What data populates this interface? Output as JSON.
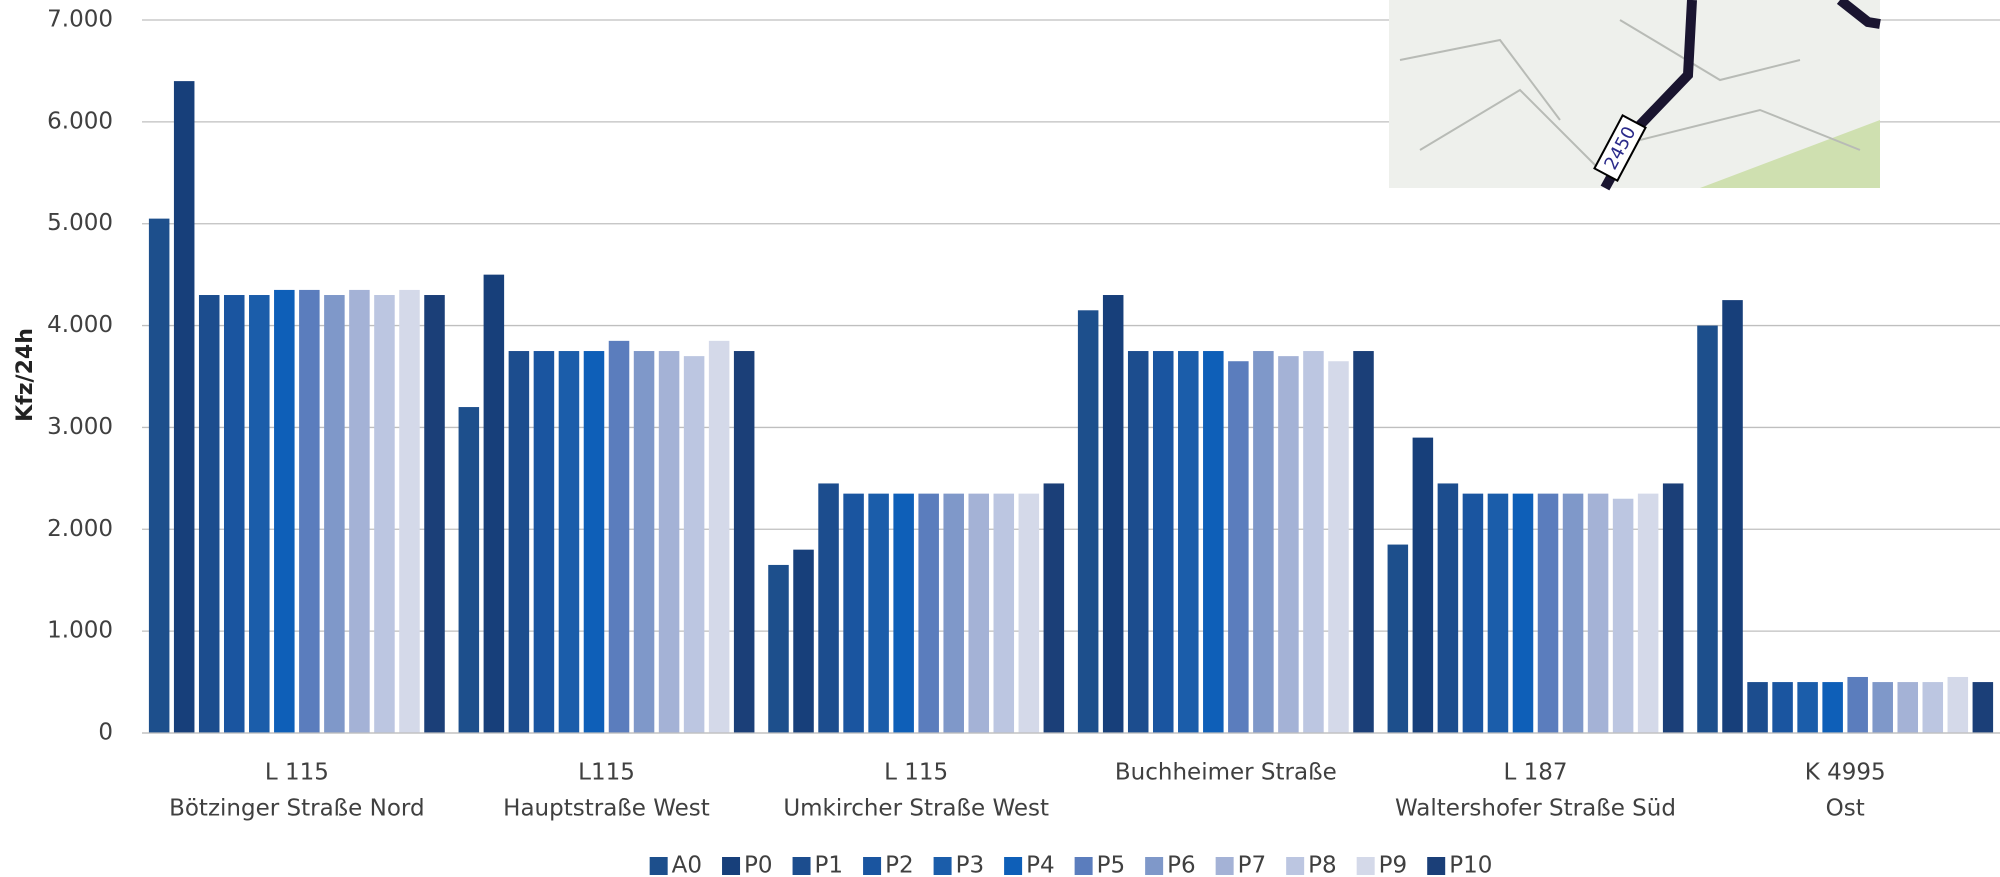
{
  "chart_data": {
    "type": "bar",
    "y_label": "Kfz/24h",
    "categories": [
      [
        "L 115",
        "Bötzinger Straße Nord"
      ],
      [
        "L115",
        "Hauptstraße West"
      ],
      [
        "L 115",
        "Umkircher Straße West"
      ],
      [
        "Buchheimer Straße"
      ],
      [
        "L 187",
        "Waltershofer Straße Süd"
      ],
      [
        "K 4995",
        "Ost"
      ]
    ],
    "series": [
      {
        "name": "A0",
        "color": "#1d4f8c",
        "values": [
          5050,
          3200,
          1650,
          4150,
          1850,
          4000
        ]
      },
      {
        "name": "P0",
        "color": "#173f7a",
        "values": [
          6400,
          4500,
          1800,
          4300,
          2900,
          4250
        ]
      },
      {
        "name": "P1",
        "color": "#1c4d8e",
        "values": [
          4300,
          3750,
          2450,
          3750,
          2450,
          500
        ]
      },
      {
        "name": "P2",
        "color": "#1a55a0",
        "values": [
          4300,
          3750,
          2350,
          3750,
          2350,
          500
        ]
      },
      {
        "name": "P3",
        "color": "#1b5daa",
        "values": [
          4300,
          3750,
          2350,
          3750,
          2350,
          500
        ]
      },
      {
        "name": "P4",
        "color": "#0e5fb8",
        "values": [
          4350,
          3750,
          2350,
          3750,
          2350,
          500
        ]
      },
      {
        "name": "P5",
        "color": "#5b7dbd",
        "values": [
          4350,
          3850,
          2350,
          3650,
          2350,
          550
        ]
      },
      {
        "name": "P6",
        "color": "#7f98c9",
        "values": [
          4300,
          3750,
          2350,
          3750,
          2350,
          500
        ]
      },
      {
        "name": "P7",
        "color": "#a4b2d6",
        "values": [
          4350,
          3750,
          2350,
          3700,
          2350,
          500
        ]
      },
      {
        "name": "P8",
        "color": "#bcc6e1",
        "values": [
          4300,
          3700,
          2350,
          3750,
          2300,
          500
        ]
      },
      {
        "name": "P9",
        "color": "#d4d9e9",
        "values": [
          4350,
          3850,
          2350,
          3650,
          2350,
          550
        ]
      },
      {
        "name": "P10",
        "color": "#1b3f78",
        "values": [
          4300,
          3750,
          2450,
          3750,
          2450,
          500
        ]
      }
    ],
    "ylim": [
      0,
      7000
    ],
    "yticks": [
      0,
      {
        "value": 1000,
        "label": "1.000"
      },
      {
        "value": 2000,
        "label": "2.000"
      },
      {
        "value": 3000,
        "label": "3.000"
      },
      {
        "value": 4000,
        "label": "4.000"
      },
      {
        "value": 5000,
        "label": "5.000"
      },
      {
        "value": 6000,
        "label": "6.000"
      },
      {
        "value": 7000,
        "label": "7.000"
      }
    ],
    "grid": true,
    "legend": "bottom",
    "annotations": [
      "2450"
    ]
  }
}
